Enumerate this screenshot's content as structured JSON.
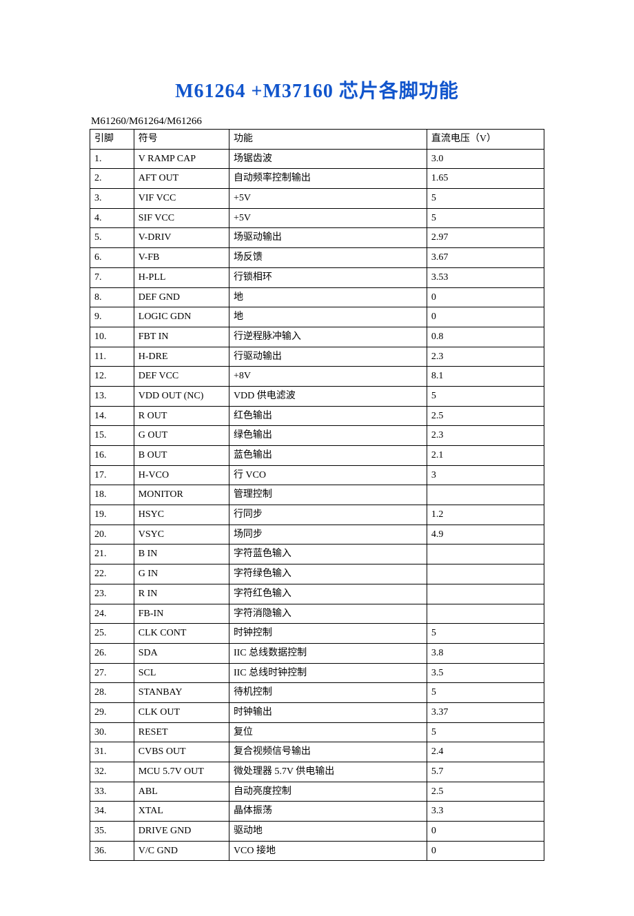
{
  "title": "M61264 +M37160 芯片各脚功能",
  "title_color": "#1155cc",
  "subtitle": "M61260/M61264/M61266",
  "table": {
    "columns": [
      "引脚",
      "符号",
      "功能",
      "直流电压（V）"
    ],
    "rows": [
      [
        "1.",
        "V RAMP CAP",
        "场锯齿波",
        "3.0"
      ],
      [
        "2.",
        "AFT  OUT",
        "自动频率控制输出",
        "1.65"
      ],
      [
        "3.",
        "VIF  VCC",
        "+5V",
        " 5"
      ],
      [
        "4.",
        "SIF  VCC",
        "  +5V",
        " 5"
      ],
      [
        "5.",
        "V-DRIV",
        "场驱动输出",
        "2.97"
      ],
      [
        "6.",
        "V-FB",
        "场反馈",
        " 3.67"
      ],
      [
        "7.",
        "H-PLL",
        "行锁相环",
        "3.53"
      ],
      [
        "8.",
        "DEF  GND",
        "地",
        "  0"
      ],
      [
        "9.",
        "LOGIC  GDN",
        "地",
        "  0"
      ],
      [
        "10.",
        " FBT  IN",
        "行逆程脉冲输入",
        "0.8"
      ],
      [
        "11.",
        "H-DRE",
        "行驱动输出",
        "2.3"
      ],
      [
        "12.",
        "DEF VCC",
        "+8V",
        " 8.1"
      ],
      [
        "13.",
        "VDD OUT (NC)",
        "VDD 供电滤波",
        "5"
      ],
      [
        "14.",
        " R  OUT",
        "红色输出",
        "2.5"
      ],
      [
        "15.",
        "G  OUT",
        "绿色输出",
        "2.3"
      ],
      [
        "16.",
        "B  OUT",
        "蓝色输出",
        "2.1"
      ],
      [
        "17.",
        "H-VCO",
        " 行 VCO",
        "3"
      ],
      [
        "18.",
        "MONITOR",
        "管理控制",
        ""
      ],
      [
        "19.",
        " HSYC",
        "行同步",
        "1.2"
      ],
      [
        "20.",
        "VSYC",
        "场同步",
        " 4.9"
      ],
      [
        "21.",
        "B  IN",
        "字符蓝色输入",
        ""
      ],
      [
        "22.",
        "G  IN",
        "字符绿色输入",
        ""
      ],
      [
        "23.",
        " R  IN",
        "字符红色输入",
        ""
      ],
      [
        "24.",
        "FB-IN",
        "字符消隐输入",
        ""
      ],
      [
        "25.",
        " CLK CONT",
        "时钟控制",
        "5"
      ],
      [
        "26.",
        "SDA",
        " IIC 总线数据控制",
        " 3.8"
      ],
      [
        "27.",
        "SCL",
        "IIC 总线时钟控制",
        " 3.5"
      ],
      [
        "28.",
        "STANBAY",
        "待机控制",
        "5"
      ],
      [
        "29.",
        " CLK OUT",
        "时钟输出",
        "3.37"
      ],
      [
        "30.",
        "RESET",
        "复位",
        "  5"
      ],
      [
        "31.",
        "CVBS OUT",
        "复合视频信号输出",
        " 2.4"
      ],
      [
        "32.",
        " MCU 5.7V OUT",
        "微处理器 5.7V 供电输出",
        "5.7"
      ],
      [
        "33.",
        "ABL",
        "自动亮度控制",
        " 2.5"
      ],
      [
        "34.",
        "XTAL",
        "晶体振荡",
        "  3.3"
      ],
      [
        "35.",
        " DRIVE GND",
        "驱动地",
        "0"
      ],
      [
        "36.",
        "  V/C GND",
        "VCO 接地",
        "0"
      ]
    ]
  }
}
